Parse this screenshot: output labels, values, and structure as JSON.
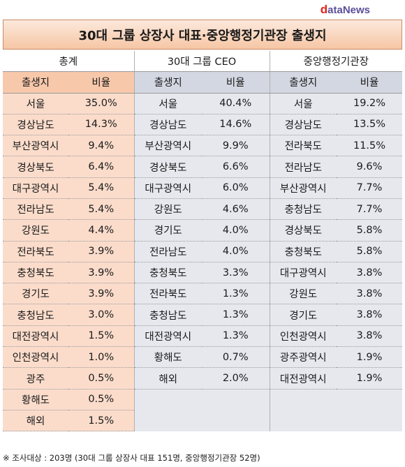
{
  "logo": {
    "d": "d",
    "ata": "ata",
    "news": "News"
  },
  "title": "30대 그룹 상장사 대표·중앙행정기관장 출생지",
  "groups": [
    "총계",
    "30대 그룹 CEO",
    "중앙행정기관장"
  ],
  "subheaders": {
    "place": "출생지",
    "ratio": "비율"
  },
  "total": [
    {
      "place": "서울",
      "ratio": "35.0%"
    },
    {
      "place": "경상남도",
      "ratio": "14.3%"
    },
    {
      "place": "부산광역시",
      "ratio": "9.4%"
    },
    {
      "place": "경상북도",
      "ratio": "6.4%"
    },
    {
      "place": "대구광역시",
      "ratio": "5.4%"
    },
    {
      "place": "전라남도",
      "ratio": "5.4%"
    },
    {
      "place": "강원도",
      "ratio": "4.4%"
    },
    {
      "place": "전라북도",
      "ratio": "3.9%"
    },
    {
      "place": "충청북도",
      "ratio": "3.9%"
    },
    {
      "place": "경기도",
      "ratio": "3.9%"
    },
    {
      "place": "충청남도",
      "ratio": "3.0%"
    },
    {
      "place": "대전광역시",
      "ratio": "1.5%"
    },
    {
      "place": "인천광역시",
      "ratio": "1.0%"
    },
    {
      "place": "광주",
      "ratio": "0.5%"
    },
    {
      "place": "황해도",
      "ratio": "0.5%"
    },
    {
      "place": "해외",
      "ratio": "1.5%"
    }
  ],
  "ceo": [
    {
      "place": "서울",
      "ratio": "40.4%"
    },
    {
      "place": "경상남도",
      "ratio": "14.6%"
    },
    {
      "place": "부산광역시",
      "ratio": "9.9%"
    },
    {
      "place": "경상북도",
      "ratio": "6.6%"
    },
    {
      "place": "대구광역시",
      "ratio": "6.0%"
    },
    {
      "place": "강원도",
      "ratio": "4.6%"
    },
    {
      "place": "경기도",
      "ratio": "4.0%"
    },
    {
      "place": "전라남도",
      "ratio": "4.0%"
    },
    {
      "place": "충청북도",
      "ratio": "3.3%"
    },
    {
      "place": "전라북도",
      "ratio": "1.3%"
    },
    {
      "place": "충청남도",
      "ratio": "1.3%"
    },
    {
      "place": "대전광역시",
      "ratio": "1.3%"
    },
    {
      "place": "황해도",
      "ratio": "0.7%"
    },
    {
      "place": "해외",
      "ratio": "2.0%"
    }
  ],
  "agency": [
    {
      "place": "서울",
      "ratio": "19.2%"
    },
    {
      "place": "경상남도",
      "ratio": "13.5%"
    },
    {
      "place": "전라북도",
      "ratio": "11.5%"
    },
    {
      "place": "전라남도",
      "ratio": "9.6%"
    },
    {
      "place": "부산광역시",
      "ratio": "7.7%"
    },
    {
      "place": "충청남도",
      "ratio": "7.7%"
    },
    {
      "place": "경상북도",
      "ratio": "5.8%"
    },
    {
      "place": "충청북도",
      "ratio": "5.8%"
    },
    {
      "place": "대구광역시",
      "ratio": "3.8%"
    },
    {
      "place": "강원도",
      "ratio": "3.8%"
    },
    {
      "place": "경기도",
      "ratio": "3.8%"
    },
    {
      "place": "인천광역시",
      "ratio": "3.8%"
    },
    {
      "place": "광주광역시",
      "ratio": "1.9%"
    },
    {
      "place": "대전광역시",
      "ratio": "1.9%"
    }
  ],
  "footnote": "※ 조사대상 : 203명 (30대 그룹 상장사 대표 151명, 중앙행정기관장 52명)"
}
